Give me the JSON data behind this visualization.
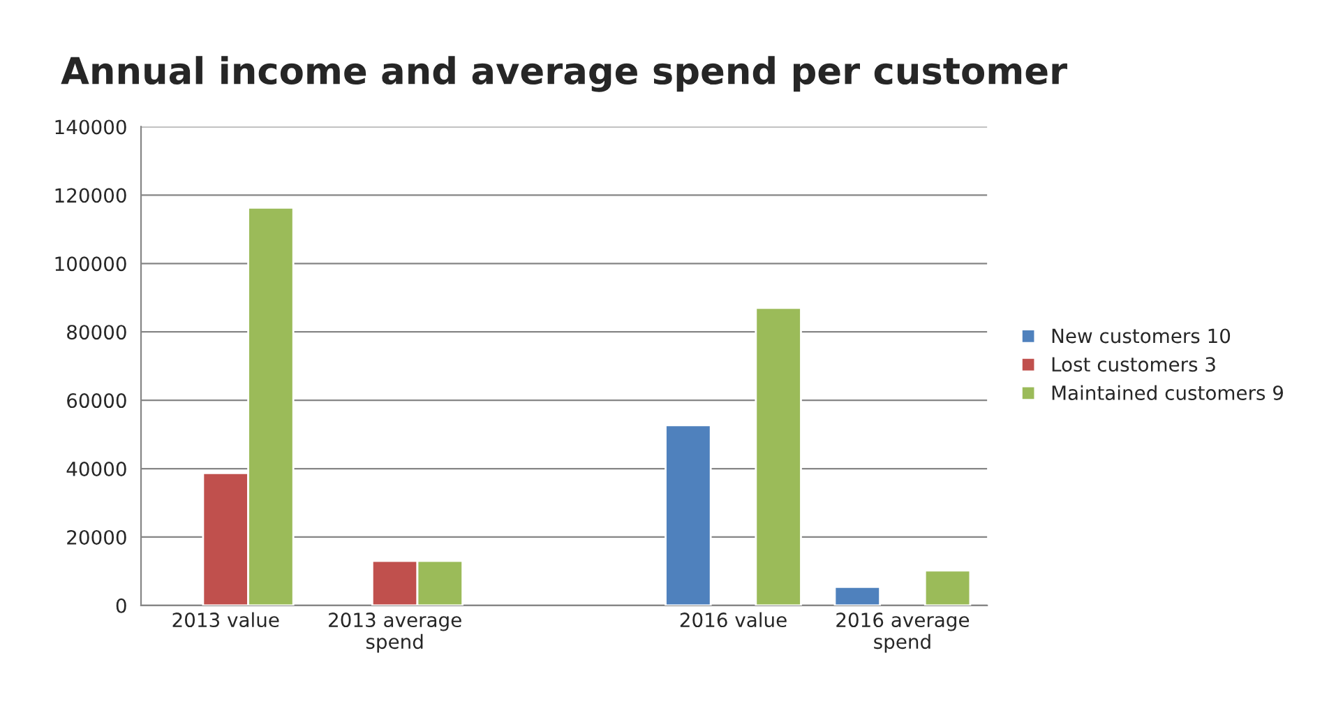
{
  "chart_data": {
    "type": "bar",
    "title": "Annual income and average spend per customer",
    "categories": [
      "2013 value",
      "2013 average\nspend",
      null,
      "2016 value",
      "2016 average\nspend"
    ],
    "series": [
      {
        "name": "New customers 10",
        "color": "#4f81bd",
        "values": [
          null,
          null,
          null,
          52700,
          5400
        ]
      },
      {
        "name": "Lost customers 3",
        "color": "#c0504d",
        "values": [
          38700,
          13000,
          null,
          null,
          null
        ]
      },
      {
        "name": "Maintained customers 9",
        "color": "#9bbb59",
        "values": [
          116300,
          13000,
          null,
          87000,
          10200
        ]
      }
    ],
    "ylim": [
      0,
      140000
    ],
    "yticks": [
      0,
      20000,
      40000,
      60000,
      80000,
      100000,
      120000,
      140000
    ],
    "grid": "y",
    "legend": "right"
  }
}
